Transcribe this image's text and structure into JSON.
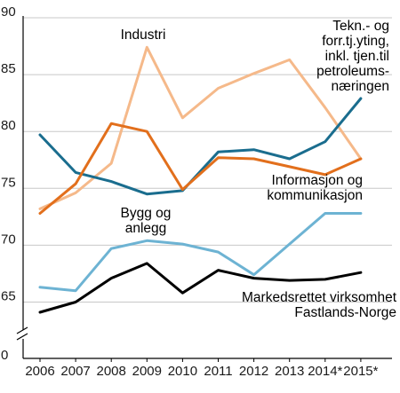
{
  "chart_data": {
    "type": "line",
    "categories": [
      "2006",
      "2007",
      "2008",
      "2009",
      "2010",
      "2011",
      "2012",
      "2013",
      "2014*",
      "2015*"
    ],
    "ylim": [
      60,
      90
    ],
    "y_axis_break": true,
    "y_ticks": [
      90,
      85,
      80,
      75,
      70,
      65
    ],
    "y_zero_label": "0",
    "grid": true,
    "series": [
      {
        "key": "industri",
        "color": "#f5b98a",
        "values": [
          73.2,
          74.6,
          77.2,
          87.4,
          81.2,
          83.8,
          85.1,
          86.3,
          82.1,
          77.6
        ],
        "label_lines": [
          "Industri"
        ]
      },
      {
        "key": "tekn",
        "color": "#1a6d8e",
        "values": [
          79.7,
          76.4,
          75.6,
          74.5,
          74.8,
          78.2,
          78.4,
          77.6,
          79.1,
          82.9
        ],
        "label_lines": [
          "Tekn.- og",
          "forr.tj.yting,",
          "inkl. tjen.til",
          "petroleums-",
          "næringen"
        ]
      },
      {
        "key": "info",
        "color": "#e26f1c",
        "values": [
          72.8,
          75.4,
          80.7,
          80.0,
          74.9,
          77.7,
          77.6,
          76.9,
          76.2,
          77.6
        ],
        "label_lines": [
          "Informasjon og",
          "kommunikasjon"
        ]
      },
      {
        "key": "bygg",
        "color": "#6db3d3",
        "values": [
          66.3,
          66.0,
          69.7,
          70.4,
          70.1,
          69.4,
          67.4,
          70.1,
          72.8,
          72.8
        ],
        "label_lines": [
          "Bygg og",
          "anlegg"
        ]
      },
      {
        "key": "markedsrettet",
        "color": "#000000",
        "values": [
          64.1,
          65.0,
          67.1,
          68.4,
          65.8,
          67.8,
          67.1,
          66.9,
          67.0,
          67.6
        ],
        "label_lines": [
          "Markedsrettet virksomhet",
          "Fastlands-Norge"
        ]
      }
    ]
  }
}
